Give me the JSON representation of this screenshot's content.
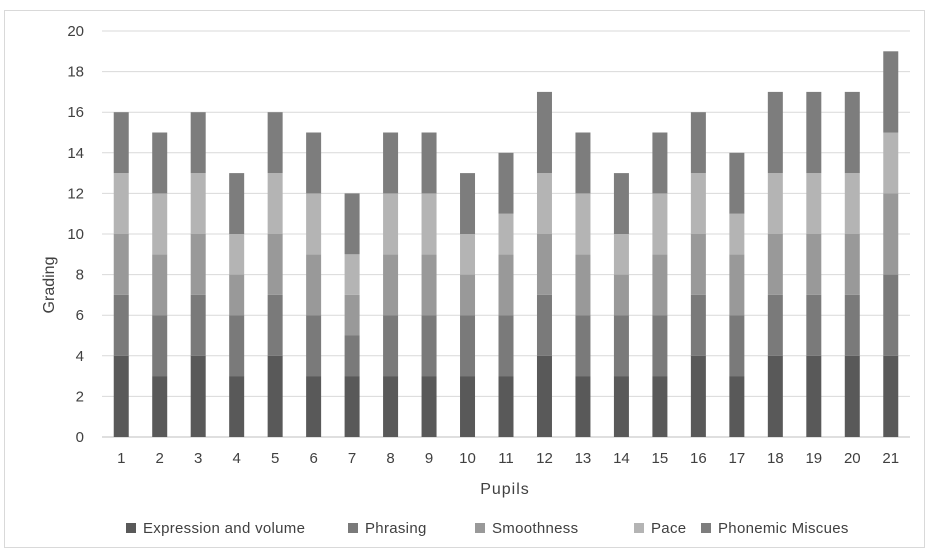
{
  "chart_data": {
    "type": "bar",
    "stacked": true,
    "xlabel": "Pupils",
    "ylabel": "Grading",
    "ylim": [
      0,
      20
    ],
    "yticks": [
      0,
      2,
      4,
      6,
      8,
      10,
      12,
      14,
      16,
      18,
      20
    ],
    "grid": true,
    "legend_position": "bottom",
    "categories": [
      "1",
      "2",
      "3",
      "4",
      "5",
      "6",
      "7",
      "8",
      "9",
      "10",
      "11",
      "12",
      "13",
      "14",
      "15",
      "16",
      "17",
      "18",
      "19",
      "20",
      "21"
    ],
    "series": [
      {
        "name": "Expression and volume",
        "color": "#595959",
        "values": [
          4,
          3,
          4,
          3,
          4,
          3,
          3,
          3,
          3,
          3,
          3,
          4,
          3,
          3,
          3,
          4,
          3,
          4,
          4,
          4,
          4
        ]
      },
      {
        "name": "Phrasing",
        "color": "#7a7a7a",
        "values": [
          3,
          3,
          3,
          3,
          3,
          3,
          2,
          3,
          3,
          3,
          3,
          3,
          3,
          3,
          3,
          3,
          3,
          3,
          3,
          3,
          4
        ]
      },
      {
        "name": "Smoothness",
        "color": "#999999",
        "values": [
          3,
          3,
          3,
          2,
          3,
          3,
          2,
          3,
          3,
          2,
          3,
          3,
          3,
          2,
          3,
          3,
          3,
          3,
          3,
          3,
          4
        ]
      },
      {
        "name": "Pace",
        "color": "#b4b4b4",
        "values": [
          3,
          3,
          3,
          2,
          3,
          3,
          2,
          3,
          3,
          2,
          2,
          3,
          3,
          2,
          3,
          3,
          2,
          3,
          3,
          3,
          3
        ]
      },
      {
        "name": "Phonemic Miscues",
        "color": "#7d7d7d",
        "values": [
          3,
          3,
          3,
          3,
          3,
          3,
          3,
          3,
          3,
          3,
          3,
          4,
          3,
          3,
          3,
          3,
          3,
          4,
          4,
          4,
          4
        ]
      }
    ]
  }
}
